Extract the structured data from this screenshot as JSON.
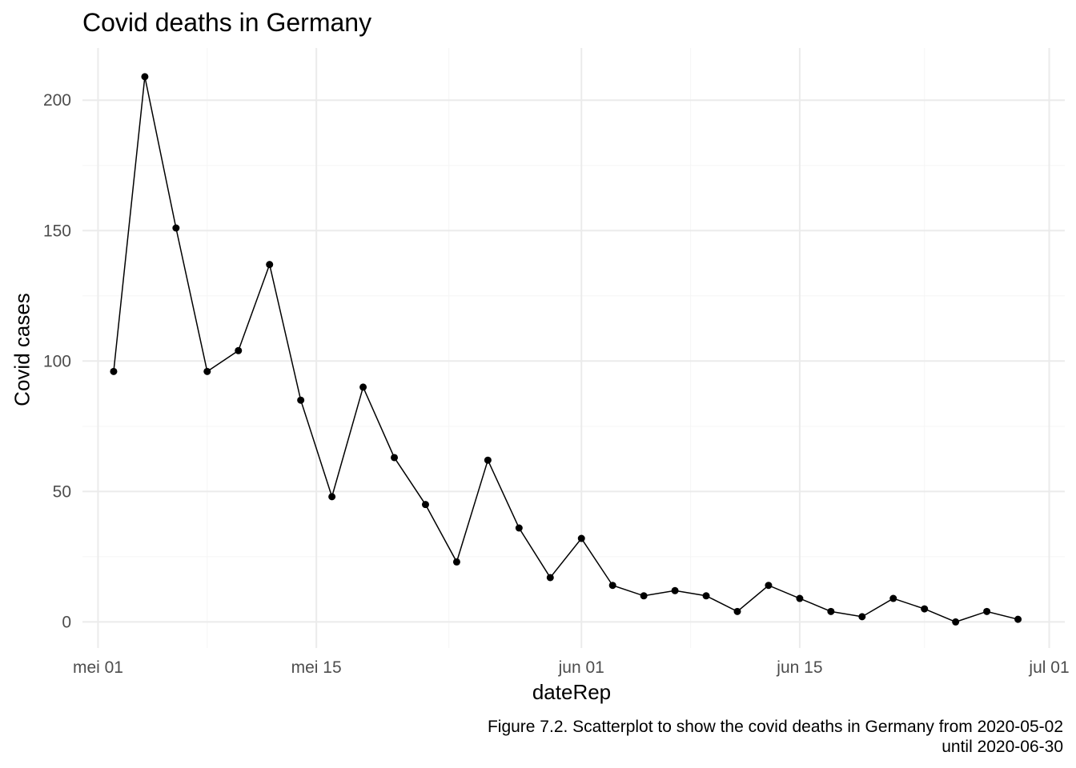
{
  "chart_data": {
    "type": "line",
    "title": "Covid deaths in Germany",
    "xlabel": "dateRep",
    "ylabel": "Covid cases",
    "x_ticks": [
      {
        "date": "2020-05-01",
        "label": "mei 01"
      },
      {
        "date": "2020-05-15",
        "label": "mei 15"
      },
      {
        "date": "2020-06-01",
        "label": "jun 01"
      },
      {
        "date": "2020-06-15",
        "label": "jun 15"
      },
      {
        "date": "2020-07-01",
        "label": "jul 01"
      }
    ],
    "y_ticks": [
      0,
      50,
      100,
      150,
      200
    ],
    "xlim": [
      "2020-04-30",
      "2020-07-02"
    ],
    "ylim": [
      -10,
      220
    ],
    "grid": true,
    "points_and_line": true,
    "series": [
      {
        "x": [
          "2020-05-02",
          "2020-05-04",
          "2020-05-06",
          "2020-05-08",
          "2020-05-10",
          "2020-05-12",
          "2020-05-14",
          "2020-05-16",
          "2020-05-18",
          "2020-05-20",
          "2020-05-22",
          "2020-05-24",
          "2020-05-26",
          "2020-05-28",
          "2020-05-30",
          "2020-06-01",
          "2020-06-03",
          "2020-06-05",
          "2020-06-07",
          "2020-06-09",
          "2020-06-11",
          "2020-06-13",
          "2020-06-15",
          "2020-06-17",
          "2020-06-19",
          "2020-06-21",
          "2020-06-23",
          "2020-06-25",
          "2020-06-27",
          "2020-06-29"
        ],
        "y": [
          96,
          209,
          151,
          96,
          104,
          137,
          85,
          48,
          90,
          63,
          45,
          23,
          62,
          36,
          17,
          32,
          14,
          10,
          12,
          10,
          4,
          14,
          9,
          4,
          2,
          9,
          5,
          0,
          4,
          1
        ]
      }
    ],
    "caption": [
      "Figure 7.2. Scatterplot to show the covid deaths in Germany from 2020-05-02",
      "until 2020-06-30"
    ],
    "colors": {
      "line": "#000000",
      "point": "#000000",
      "grid_major": "#ebebeb",
      "grid_minor": "#f5f5f5",
      "tick_text": "#4d4d4d"
    }
  }
}
